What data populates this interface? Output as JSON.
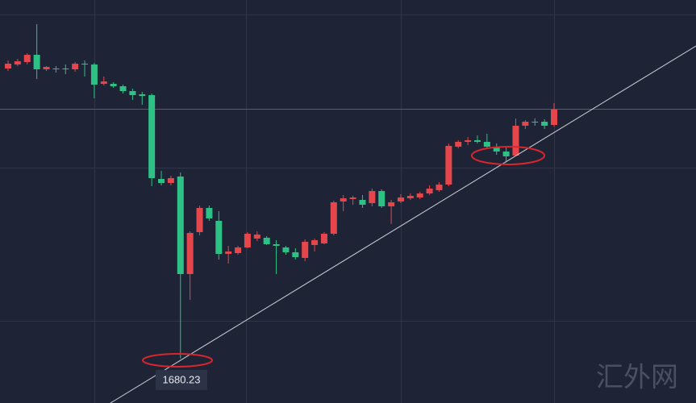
{
  "chart_data": {
    "type": "candlestick",
    "open": [
      1716.2,
      1716.7,
      1717.0,
      1717.9,
      1716.1,
      1716.2,
      1716.2,
      1716.1,
      1716.8,
      1716.7,
      1714.3,
      1714.3,
      1714.0,
      1713.4,
      1713.0,
      1712.9,
      1702.5,
      1702.0,
      1702.8,
      1690.7,
      1695.9,
      1698.9,
      1697.3,
      1693.2,
      1693.3,
      1694.0,
      1695.1,
      1695.2,
      1694.4,
      1694.0,
      1693.4,
      1692.7,
      1694.3,
      1694.5,
      1695.7,
      1699.7,
      1700.0,
      1699.9,
      1699.5,
      1701.0,
      1699.1,
      1699.7,
      1700.1,
      1700.2,
      1700.7,
      1701.1,
      1701.8,
      1706.5,
      1707.1,
      1707.3,
      1707.1,
      1706.4,
      1705.9,
      1705.4,
      1709.1,
      1709.6,
      1709.6,
      1709.2
    ],
    "high": [
      1717.2,
      1717.4,
      1718.1,
      1721.7,
      1716.5,
      1716.5,
      1716.7,
      1717.0,
      1717.2,
      1716.9,
      1715.2,
      1714.5,
      1714.2,
      1713.7,
      1713.3,
      1713.1,
      1703.5,
      1702.9,
      1703.3,
      1696.0,
      1699.2,
      1699.2,
      1698.5,
      1694.2,
      1694.2,
      1695.9,
      1696.0,
      1695.4,
      1694.9,
      1694.2,
      1693.9,
      1695.0,
      1695.1,
      1695.9,
      1699.8,
      1700.5,
      1700.4,
      1700.5,
      1701.3,
      1701.2,
      1699.9,
      1700.6,
      1700.7,
      1700.9,
      1701.7,
      1702.1,
      1706.9,
      1707.3,
      1707.7,
      1707.9,
      1708.1,
      1706.9,
      1706.4,
      1710.0,
      1709.8,
      1710.0,
      1709.9,
      1711.9
    ],
    "low": [
      1715.9,
      1716.5,
      1716.7,
      1714.9,
      1715.9,
      1715.7,
      1715.5,
      1715.8,
      1715.2,
      1712.5,
      1714.1,
      1713.8,
      1713.1,
      1712.3,
      1711.7,
      1701.6,
      1701.7,
      1701.7,
      1680.23,
      1687.5,
      1695.5,
      1697.3,
      1692.5,
      1692.0,
      1693.1,
      1693.9,
      1694.8,
      1694.3,
      1690.7,
      1693.1,
      1692.5,
      1692.3,
      1693.5,
      1694.4,
      1695.5,
      1698.5,
      1699.3,
      1698.9,
      1699.1,
      1698.9,
      1696.9,
      1699.5,
      1699.9,
      1700.0,
      1700.5,
      1700.9,
      1701.6,
      1706.3,
      1706.7,
      1706.9,
      1706.3,
      1705.5,
      1704.7,
      1705.3,
      1708.7,
      1709.1,
      1708.7,
      1709.0
    ],
    "close": [
      1716.8,
      1717.1,
      1717.9,
      1716.1,
      1716.4,
      1716.1,
      1716.1,
      1716.8,
      1716.7,
      1714.2,
      1714.6,
      1714.0,
      1713.4,
      1712.9,
      1712.8,
      1702.6,
      1702.0,
      1702.6,
      1690.7,
      1695.8,
      1698.9,
      1697.6,
      1693.2,
      1693.5,
      1694.0,
      1695.7,
      1695.6,
      1694.4,
      1694.2,
      1693.4,
      1692.8,
      1694.7,
      1694.9,
      1695.7,
      1699.6,
      1700.1,
      1700.2,
      1699.3,
      1701.0,
      1699.1,
      1699.6,
      1700.2,
      1700.4,
      1700.7,
      1701.3,
      1701.8,
      1706.6,
      1707.1,
      1707.3,
      1707.1,
      1706.5,
      1705.9,
      1705.3,
      1709.1,
      1709.6,
      1709.5,
      1709.1,
      1711.1
    ],
    "up_color": "#e5464b",
    "down_color": "#2ec186",
    "ylim": [
      1674.7,
      1724.7
    ],
    "low_label_index": 18,
    "watermark": "汇外网"
  }
}
